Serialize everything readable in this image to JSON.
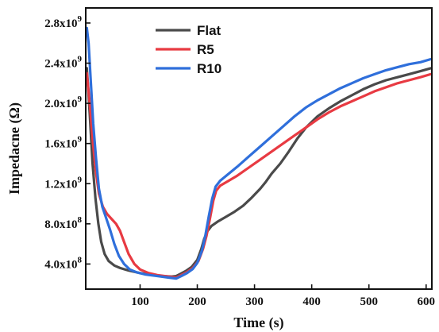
{
  "chart_data": {
    "type": "line",
    "title": "",
    "xlabel": "Time (s)",
    "ylabel": "Impedacne (Ω)",
    "xlim": [
      5,
      610
    ],
    "ylim": [
      150000000.0,
      2950000000.0
    ],
    "grid": false,
    "legend_position": "top-left",
    "x_ticks": [
      {
        "value": 100,
        "label": "100"
      },
      {
        "value": 200,
        "label": "200"
      },
      {
        "value": 300,
        "label": "300"
      },
      {
        "value": 400,
        "label": "400"
      },
      {
        "value": 500,
        "label": "500"
      },
      {
        "value": 600,
        "label": "600"
      }
    ],
    "y_ticks": [
      {
        "value": 400000000,
        "mant": "4.0x10",
        "exp": "8"
      },
      {
        "value": 800000000,
        "mant": "8.0x10",
        "exp": "8"
      },
      {
        "value": 1200000000,
        "mant": "1.2x10",
        "exp": "9"
      },
      {
        "value": 1600000000,
        "mant": "1.6x10",
        "exp": "9"
      },
      {
        "value": 2000000000,
        "mant": "2.0x10",
        "exp": "9"
      },
      {
        "value": 2400000000,
        "mant": "2.4x10",
        "exp": "9"
      },
      {
        "value": 2800000000,
        "mant": "2.8x10",
        "exp": "9"
      }
    ],
    "series": [
      {
        "name": "Flat",
        "color": "#4a4a4a",
        "points": [
          [
            7,
            2350000000.0
          ],
          [
            12,
            1900000000.0
          ],
          [
            17,
            1400000000.0
          ],
          [
            22,
            1050000000.0
          ],
          [
            27,
            800000000.0
          ],
          [
            32,
            620000000.0
          ],
          [
            38,
            500000000.0
          ],
          [
            45,
            430000000.0
          ],
          [
            55,
            385000000.0
          ],
          [
            65,
            360000000.0
          ],
          [
            80,
            335000000.0
          ],
          [
            100,
            310000000.0
          ],
          [
            120,
            290000000.0
          ],
          [
            140,
            280000000.0
          ],
          [
            155,
            275000000.0
          ],
          [
            163,
            280000000.0
          ],
          [
            170,
            300000000.0
          ],
          [
            180,
            330000000.0
          ],
          [
            190,
            370000000.0
          ],
          [
            200,
            440000000.0
          ],
          [
            207,
            550000000.0
          ],
          [
            212,
            650000000.0
          ],
          [
            218,
            730000000.0
          ],
          [
            225,
            780000000.0
          ],
          [
            235,
            820000000.0
          ],
          [
            250,
            870000000.0
          ],
          [
            265,
            920000000.0
          ],
          [
            280,
            980000000.0
          ],
          [
            295,
            1060000000.0
          ],
          [
            310,
            1150000000.0
          ],
          [
            320,
            1220000000.0
          ],
          [
            330,
            1300000000.0
          ],
          [
            345,
            1400000000.0
          ],
          [
            360,
            1520000000.0
          ],
          [
            375,
            1650000000.0
          ],
          [
            390,
            1760000000.0
          ],
          [
            410,
            1870000000.0
          ],
          [
            430,
            1950000000.0
          ],
          [
            450,
            2020000000.0
          ],
          [
            470,
            2080000000.0
          ],
          [
            490,
            2140000000.0
          ],
          [
            510,
            2190000000.0
          ],
          [
            530,
            2230000000.0
          ],
          [
            550,
            2260000000.0
          ],
          [
            570,
            2290000000.0
          ],
          [
            590,
            2320000000.0
          ],
          [
            608,
            2350000000.0
          ]
        ]
      },
      {
        "name": "R5",
        "color": "#e83a42",
        "points": [
          [
            7,
            2300000000.0
          ],
          [
            12,
            2000000000.0
          ],
          [
            17,
            1650000000.0
          ],
          [
            22,
            1350000000.0
          ],
          [
            28,
            1100000000.0
          ],
          [
            35,
            970000000.0
          ],
          [
            42,
            900000000.0
          ],
          [
            50,
            850000000.0
          ],
          [
            58,
            800000000.0
          ],
          [
            65,
            730000000.0
          ],
          [
            72,
            620000000.0
          ],
          [
            80,
            500000000.0
          ],
          [
            90,
            400000000.0
          ],
          [
            100,
            345000000.0
          ],
          [
            115,
            310000000.0
          ],
          [
            130,
            290000000.0
          ],
          [
            150,
            275000000.0
          ],
          [
            163,
            265000000.0
          ],
          [
            172,
            290000000.0
          ],
          [
            182,
            320000000.0
          ],
          [
            192,
            360000000.0
          ],
          [
            202,
            430000000.0
          ],
          [
            210,
            550000000.0
          ],
          [
            216,
            680000000.0
          ],
          [
            222,
            850000000.0
          ],
          [
            228,
            1030000000.0
          ],
          [
            233,
            1130000000.0
          ],
          [
            240,
            1180000000.0
          ],
          [
            255,
            1230000000.0
          ],
          [
            270,
            1280000000.0
          ],
          [
            290,
            1360000000.0
          ],
          [
            310,
            1440000000.0
          ],
          [
            330,
            1520000000.0
          ],
          [
            350,
            1600000000.0
          ],
          [
            370,
            1680000000.0
          ],
          [
            390,
            1760000000.0
          ],
          [
            410,
            1840000000.0
          ],
          [
            430,
            1910000000.0
          ],
          [
            450,
            1970000000.0
          ],
          [
            470,
            2020000000.0
          ],
          [
            490,
            2070000000.0
          ],
          [
            510,
            2120000000.0
          ],
          [
            530,
            2160000000.0
          ],
          [
            550,
            2200000000.0
          ],
          [
            570,
            2230000000.0
          ],
          [
            590,
            2260000000.0
          ],
          [
            608,
            2290000000.0
          ]
        ]
      },
      {
        "name": "R10",
        "color": "#2f6fdb",
        "points": [
          [
            7,
            2750000000.0
          ],
          [
            10,
            2600000000.0
          ],
          [
            14,
            2200000000.0
          ],
          [
            18,
            1800000000.0
          ],
          [
            23,
            1450000000.0
          ],
          [
            28,
            1150000000.0
          ],
          [
            34,
            970000000.0
          ],
          [
            40,
            870000000.0
          ],
          [
            47,
            750000000.0
          ],
          [
            55,
            600000000.0
          ],
          [
            63,
            480000000.0
          ],
          [
            72,
            400000000.0
          ],
          [
            82,
            345000000.0
          ],
          [
            95,
            315000000.0
          ],
          [
            110,
            295000000.0
          ],
          [
            130,
            280000000.0
          ],
          [
            150,
            265000000.0
          ],
          [
            163,
            255000000.0
          ],
          [
            172,
            280000000.0
          ],
          [
            182,
            310000000.0
          ],
          [
            192,
            350000000.0
          ],
          [
            200,
            410000000.0
          ],
          [
            208,
            530000000.0
          ],
          [
            214,
            680000000.0
          ],
          [
            220,
            870000000.0
          ],
          [
            226,
            1050000000.0
          ],
          [
            232,
            1170000000.0
          ],
          [
            240,
            1230000000.0
          ],
          [
            255,
            1300000000.0
          ],
          [
            270,
            1370000000.0
          ],
          [
            290,
            1470000000.0
          ],
          [
            310,
            1570000000.0
          ],
          [
            330,
            1670000000.0
          ],
          [
            350,
            1770000000.0
          ],
          [
            370,
            1870000000.0
          ],
          [
            390,
            1960000000.0
          ],
          [
            410,
            2030000000.0
          ],
          [
            430,
            2090000000.0
          ],
          [
            450,
            2150000000.0
          ],
          [
            470,
            2200000000.0
          ],
          [
            490,
            2250000000.0
          ],
          [
            510,
            2290000000.0
          ],
          [
            530,
            2330000000.0
          ],
          [
            550,
            2360000000.0
          ],
          [
            570,
            2390000000.0
          ],
          [
            590,
            2410000000.0
          ],
          [
            608,
            2440000000.0
          ]
        ]
      }
    ]
  }
}
